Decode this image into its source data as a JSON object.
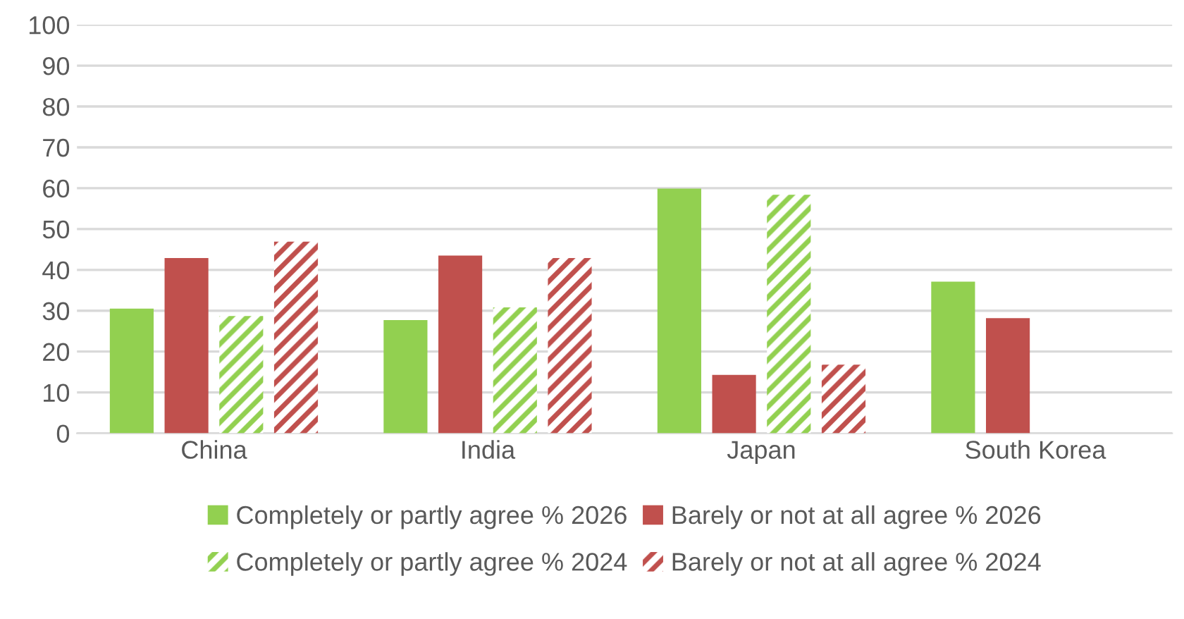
{
  "chart_data": {
    "type": "bar",
    "categories": [
      "China",
      "India",
      "Japan",
      "South Korea"
    ],
    "series": [
      {
        "name": "Completely or partly agree % 2026",
        "color": "#92d050",
        "values": [
          30.5,
          27.7,
          59.9,
          37.1
        ]
      },
      {
        "name": "Barely or not at all agree % 2026",
        "color": "#c0504d",
        "values": [
          42.9,
          43.5,
          14.3,
          28.2
        ]
      },
      {
        "name": "Completely or partly agree % 2024",
        "color": "#92d050",
        "line_style": "dashed",
        "values": [
          28.7,
          30.8,
          58.4,
          null
        ]
      },
      {
        "name": "Barely or not at all agree % 2024",
        "color": "#c0504d",
        "line_style": "dashed",
        "values": [
          46.9,
          42.9,
          16.8,
          null
        ]
      }
    ],
    "ylim": [
      0,
      100
    ],
    "yticks": [
      0,
      10,
      20,
      30,
      40,
      50,
      60,
      70,
      80,
      90,
      100
    ],
    "grid": "y",
    "legend": "bottom"
  }
}
